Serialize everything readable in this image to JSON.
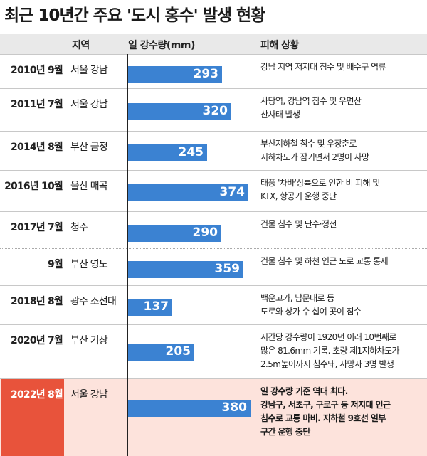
{
  "title": "최근 10년간 주요 '도시 홍수' 발생 현황",
  "headers": {
    "region": "지역",
    "rainfall": "일 강수량(mm)",
    "damage": "피해 상황"
  },
  "colors": {
    "bar": "#3b82d2",
    "highlight_bg": "#fde3dc",
    "highlight_date": "#e8533b",
    "header_bg": "#e9e9e9"
  },
  "chart_data": {
    "type": "bar",
    "orientation": "horizontal",
    "unit": "mm",
    "xlim": [
      0,
      420
    ],
    "categories": [
      "2010년 9월",
      "2011년 7월",
      "2014년 8월",
      "2016년 10월",
      "2017년 7월",
      "9월",
      "2018년 8월",
      "2020년 7월",
      "2022년 8월"
    ],
    "values": [
      293,
      320,
      245,
      374,
      290,
      359,
      137,
      205,
      380
    ]
  },
  "rows": [
    {
      "date": "2010년 9월",
      "region": "서울 강남",
      "value": 293,
      "desc": [
        "강남 지역 저지대 침수 및 배수구 역류"
      ]
    },
    {
      "date": "2011년 7월",
      "region": "서울 강남",
      "value": 320,
      "desc": [
        "사당역, 강남역 침수 및 우면산",
        "산사태 발생"
      ]
    },
    {
      "date": "2014년 8월",
      "region": "부산 금정",
      "value": 245,
      "desc": [
        "부산지하철 침수 및 우장춘로",
        "지하차도가 잠기면서 2명이 사망"
      ]
    },
    {
      "date": "2016년 10월",
      "region": "울산 매곡",
      "value": 374,
      "desc": [
        "태풍 '차바'상륙으로 인한 비 피해 및",
        "KTX, 항공기 운행 중단"
      ]
    },
    {
      "date": "2017년 7월",
      "region": "청주",
      "value": 290,
      "desc": [
        "건물 침수 및 단수·정전"
      ]
    },
    {
      "date": "9월",
      "region": "부산 영도",
      "value": 359,
      "desc": [
        "건물 침수 및 하천 인근 도로 교통 통제"
      ]
    },
    {
      "date": "2018년 8월",
      "region": "광주 조선대",
      "value": 137,
      "desc": [
        "백운고가, 남문대로 등",
        "도로와 상가 수 십여 곳이 침수"
      ]
    },
    {
      "date": "2020년 7월",
      "region": "부산 기장",
      "value": 205,
      "desc": [
        "시간당 강수량이 1920년 이래 10번째로",
        "많은 81.6mm 기록. 초량 제1지하차도가",
        "2.5m높이까지 침수돼, 사망자 3명 발생"
      ]
    },
    {
      "date": "2022년 8월",
      "region": "서울 강남",
      "value": 380,
      "desc": [
        "일 강수량 기준 역대 최다.",
        "강남구, 서초구, 구로구 등 저지대 인근",
        "침수로 교통 마비. 지하철 9호선 일부",
        "구간 운행 중단"
      ]
    }
  ]
}
